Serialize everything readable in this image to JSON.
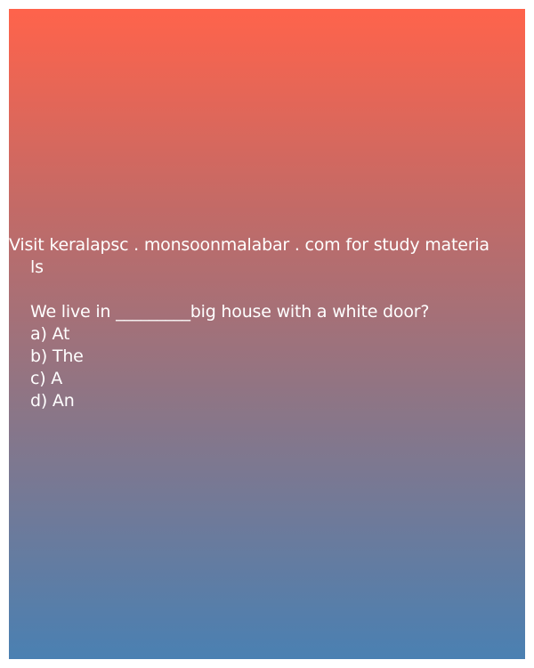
{
  "header": {
    "line1": "Visit keralapsc . monsoonmalabar . com for study materia",
    "line2": "ls"
  },
  "question": {
    "text": "We live in _________big house with a white door?",
    "options": [
      "a) At",
      "b) The",
      "c) A",
      "d) An"
    ]
  },
  "colors": {
    "gradient_top": "#ff634b",
    "gradient_bottom": "#4a80b2",
    "text": "#ffffff"
  }
}
